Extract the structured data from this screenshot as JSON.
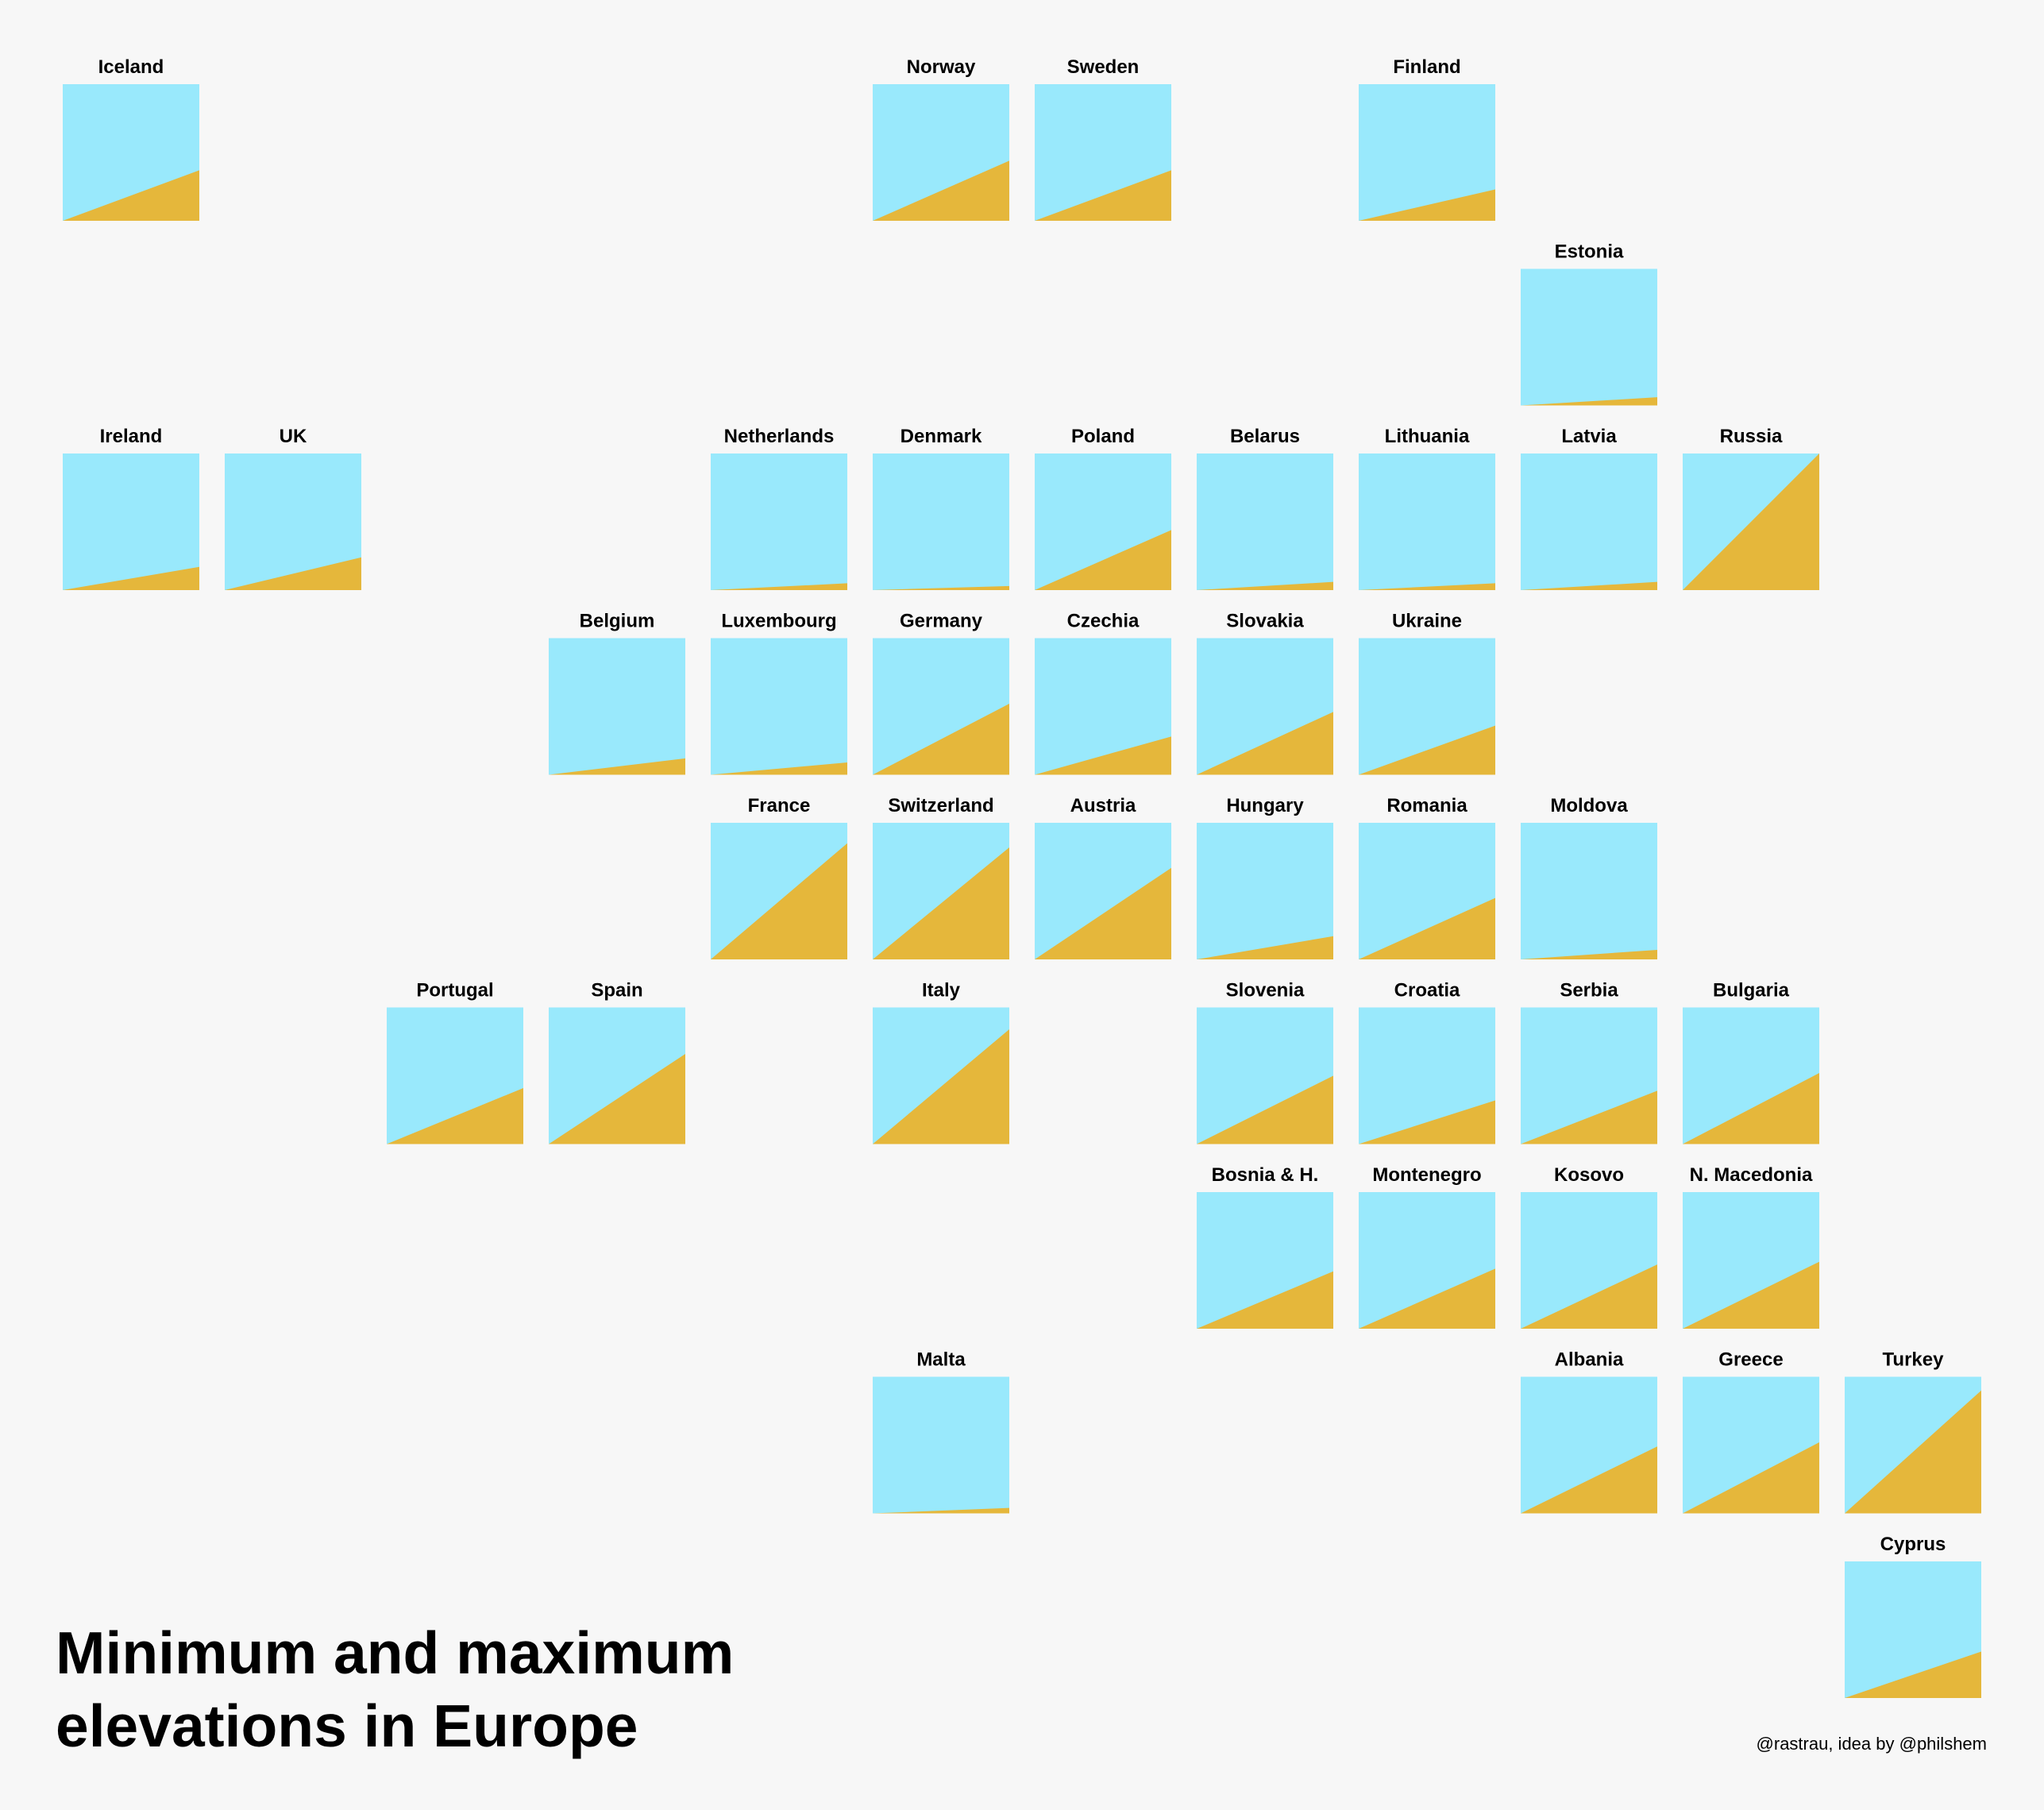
{
  "title_lines": [
    "Minimum and maximum",
    "elevations in Europe"
  ],
  "credit": "@rastrau, idea by @philshem",
  "colors": {
    "background": "#f7f7f7",
    "sky": "#99e9fc",
    "land": "#e5b73b"
  },
  "chart_data": {
    "type": "tile-map",
    "max_fraction_scale": "share of tile height filled by the elevation ramp at the right edge",
    "tiles": [
      {
        "name": "Iceland",
        "col": 0,
        "row": 0,
        "level": 0.37
      },
      {
        "name": "Norway",
        "col": 5,
        "row": 0,
        "level": 0.44
      },
      {
        "name": "Sweden",
        "col": 6,
        "row": 0,
        "level": 0.37
      },
      {
        "name": "Finland",
        "col": 8,
        "row": 0,
        "level": 0.23
      },
      {
        "name": "Estonia",
        "col": 9,
        "row": 1,
        "level": 0.06
      },
      {
        "name": "Ireland",
        "col": 0,
        "row": 2,
        "level": 0.17
      },
      {
        "name": "UK",
        "col": 1,
        "row": 2,
        "level": 0.24
      },
      {
        "name": "Netherlands",
        "col": 4,
        "row": 2,
        "level": 0.05
      },
      {
        "name": "Denmark",
        "col": 5,
        "row": 2,
        "level": 0.03
      },
      {
        "name": "Poland",
        "col": 6,
        "row": 2,
        "level": 0.44
      },
      {
        "name": "Belarus",
        "col": 7,
        "row": 2,
        "level": 0.06
      },
      {
        "name": "Lithuania",
        "col": 8,
        "row": 2,
        "level": 0.05
      },
      {
        "name": "Latvia",
        "col": 9,
        "row": 2,
        "level": 0.06
      },
      {
        "name": "Russia",
        "col": 10,
        "row": 2,
        "level": 1.0
      },
      {
        "name": "Belgium",
        "col": 3,
        "row": 3,
        "level": 0.12
      },
      {
        "name": "Luxembourg",
        "col": 4,
        "row": 3,
        "level": 0.09
      },
      {
        "name": "Germany",
        "col": 5,
        "row": 3,
        "level": 0.52
      },
      {
        "name": "Czechia",
        "col": 6,
        "row": 3,
        "level": 0.28
      },
      {
        "name": "Slovakia",
        "col": 7,
        "row": 3,
        "level": 0.46
      },
      {
        "name": "Ukraine",
        "col": 8,
        "row": 3,
        "level": 0.36
      },
      {
        "name": "France",
        "col": 4,
        "row": 4,
        "level": 0.85
      },
      {
        "name": "Switzerland",
        "col": 5,
        "row": 4,
        "level": 0.82
      },
      {
        "name": "Austria",
        "col": 6,
        "row": 4,
        "level": 0.67
      },
      {
        "name": "Hungary",
        "col": 7,
        "row": 4,
        "level": 0.17
      },
      {
        "name": "Romania",
        "col": 8,
        "row": 4,
        "level": 0.45
      },
      {
        "name": "Moldova",
        "col": 9,
        "row": 4,
        "level": 0.07
      },
      {
        "name": "Portugal",
        "col": 2,
        "row": 5,
        "level": 0.41
      },
      {
        "name": "Spain",
        "col": 3,
        "row": 5,
        "level": 0.66
      },
      {
        "name": "Italy",
        "col": 5,
        "row": 5,
        "level": 0.84
      },
      {
        "name": "Slovenia",
        "col": 7,
        "row": 5,
        "level": 0.5
      },
      {
        "name": "Croatia",
        "col": 8,
        "row": 5,
        "level": 0.32
      },
      {
        "name": "Serbia",
        "col": 9,
        "row": 5,
        "level": 0.39
      },
      {
        "name": "Bulgaria",
        "col": 10,
        "row": 5,
        "level": 0.52
      },
      {
        "name": "Bosnia & H.",
        "col": 7,
        "row": 6,
        "level": 0.42
      },
      {
        "name": "Montenegro",
        "col": 8,
        "row": 6,
        "level": 0.44
      },
      {
        "name": "Kosovo",
        "col": 9,
        "row": 6,
        "level": 0.47
      },
      {
        "name": "N. Macedonia",
        "col": 10,
        "row": 6,
        "level": 0.49
      },
      {
        "name": "Malta",
        "col": 5,
        "row": 7,
        "level": 0.04
      },
      {
        "name": "Albania",
        "col": 9,
        "row": 7,
        "level": 0.49
      },
      {
        "name": "Greece",
        "col": 10,
        "row": 7,
        "level": 0.52
      },
      {
        "name": "Turkey",
        "col": 11,
        "row": 7,
        "level": 0.9
      },
      {
        "name": "Cyprus",
        "col": 11,
        "row": 8,
        "level": 0.34
      }
    ]
  }
}
